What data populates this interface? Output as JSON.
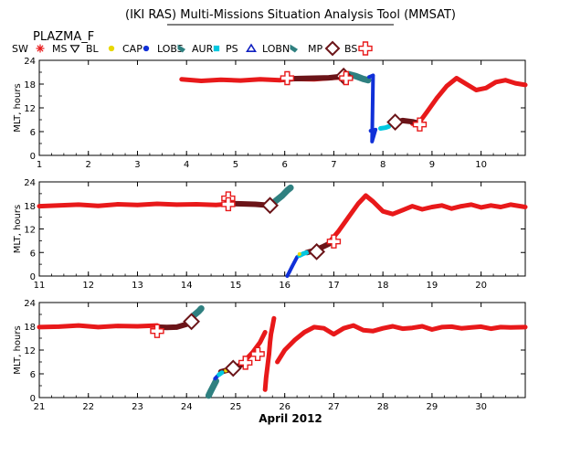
{
  "header": {
    "title": "(IKI RAS) Multi-Missions Situation Analysis Tool (MMSAT)",
    "subtitle": "PLAZMA_F"
  },
  "legend": [
    {
      "label": "SW",
      "marker": "none",
      "color": "#000000"
    },
    {
      "label": "MS",
      "marker": "asterisk",
      "color": "#e8191a"
    },
    {
      "label": "BL",
      "marker": "triangle-down",
      "color": "#000000"
    },
    {
      "label": "CAP",
      "marker": "dot",
      "color": "#e8d800"
    },
    {
      "label": "LOBS",
      "marker": "dot",
      "color": "#1030d8"
    },
    {
      "label": "AUR",
      "marker": "flag",
      "color": "#2f8080"
    },
    {
      "label": "PS",
      "marker": "square",
      "color": "#00c8e0"
    },
    {
      "label": "LOBN",
      "marker": "triangle-up",
      "color": "#1020c0"
    },
    {
      "label": "MP",
      "marker": "flag",
      "color": "#2f8080"
    },
    {
      "label": "BS",
      "marker": "diamond",
      "color": "#6b1418"
    },
    {
      "label": "",
      "marker": "cross",
      "color": "#e8191a"
    }
  ],
  "chart_data": [
    {
      "type": "scatter",
      "ylabel": "MLT, hours",
      "xlim": [
        1,
        10.9
      ],
      "ylim": [
        0,
        24
      ],
      "xticks": [
        1,
        2,
        3,
        4,
        5,
        6,
        7,
        8,
        9,
        10
      ],
      "yticks": [
        0,
        6,
        12,
        18,
        24
      ],
      "series": [
        {
          "name": "MS",
          "color": "#e8191a",
          "x": [
            3.9,
            4.3,
            4.7,
            5.1,
            5.5,
            5.9,
            6.2,
            6.6,
            7.0,
            7.3
          ],
          "y": [
            19.2,
            18.8,
            19.1,
            18.9,
            19.2,
            19.0,
            19.3,
            19.2,
            19.6,
            19.8
          ]
        },
        {
          "name": "MS",
          "color": "#e8191a",
          "x": [
            8.6,
            8.75,
            8.9,
            9.1,
            9.3,
            9.5,
            9.7,
            9.9,
            10.1,
            10.3,
            10.5,
            10.7,
            10.9
          ],
          "y": [
            8.0,
            8.5,
            11.0,
            14.5,
            17.5,
            19.5,
            18.0,
            16.5,
            17.0,
            18.5,
            19.0,
            18.2,
            17.8
          ]
        },
        {
          "name": "BS",
          "color": "#6b1418",
          "x": [
            6.0,
            6.3,
            6.6,
            6.9,
            7.2
          ],
          "y": [
            19.3,
            19.4,
            19.5,
            19.6,
            20.0
          ]
        },
        {
          "name": "BS",
          "color": "#6b1418",
          "x": [
            8.2,
            8.4,
            8.6,
            8.75
          ],
          "y": [
            8.2,
            8.8,
            8.5,
            8.0
          ]
        },
        {
          "name": "AUR",
          "color": "#2f8080",
          "x": [
            7.3,
            7.45,
            7.6,
            7.7
          ],
          "y": [
            20.5,
            20.0,
            19.3,
            19.0
          ]
        },
        {
          "name": "LOBS",
          "color": "#1030d8",
          "x": [
            7.72,
            7.8,
            7.78,
            7.85,
            7.75
          ],
          "y": [
            19.8,
            20.2,
            3.5,
            6.5,
            6.2
          ]
        },
        {
          "name": "PS",
          "color": "#00c8e0",
          "x": [
            7.95,
            8.05,
            8.12
          ],
          "y": [
            6.8,
            7.0,
            7.3
          ]
        },
        {
          "name": "CAP",
          "color": "#e8d800",
          "x": [
            7.22,
            8.3
          ],
          "y": [
            19.8,
            8.5
          ]
        }
      ],
      "bs_markers": [
        [
          7.2,
          20.0
        ],
        [
          8.25,
          8.4
        ]
      ],
      "cross_markers": [
        [
          6.05,
          19.5
        ],
        [
          7.25,
          19.5
        ],
        [
          8.75,
          7.8
        ]
      ]
    },
    {
      "type": "scatter",
      "ylabel": "MLT, hours",
      "xlim": [
        11,
        20.9
      ],
      "ylim": [
        0,
        24
      ],
      "xticks": [
        11,
        12,
        13,
        14,
        15,
        16,
        17,
        18,
        19,
        20
      ],
      "yticks": [
        0,
        6,
        12,
        18,
        24
      ],
      "series": [
        {
          "name": "MS",
          "color": "#e8191a",
          "x": [
            11.0,
            11.4,
            11.8,
            12.2,
            12.6,
            13.0,
            13.4,
            13.8,
            14.2,
            14.6,
            15.0,
            15.4
          ],
          "y": [
            17.8,
            18.0,
            18.2,
            17.9,
            18.3,
            18.1,
            18.4,
            18.2,
            18.3,
            18.1,
            18.5,
            18.3
          ]
        },
        {
          "name": "MS",
          "color": "#e8191a",
          "x": [
            16.9,
            17.1,
            17.3,
            17.5,
            17.65,
            17.8,
            18.0,
            18.2,
            18.4,
            18.6,
            18.8,
            19.0,
            19.2,
            19.4,
            19.6,
            19.8,
            20.0,
            20.2,
            20.4,
            20.6,
            20.9
          ],
          "y": [
            8.5,
            11.5,
            15.0,
            18.5,
            20.5,
            19.0,
            16.5,
            15.8,
            16.8,
            17.8,
            17.0,
            17.6,
            18.0,
            17.2,
            17.8,
            18.2,
            17.5,
            18.0,
            17.6,
            18.2,
            17.6
          ]
        },
        {
          "name": "BS",
          "color": "#6b1418",
          "x": [
            14.8,
            15.1,
            15.4,
            15.7
          ],
          "y": [
            18.5,
            18.4,
            18.3,
            18.0
          ]
        },
        {
          "name": "BS",
          "color": "#6b1418",
          "x": [
            16.45,
            16.6,
            16.75,
            16.9
          ],
          "y": [
            6.0,
            6.5,
            7.3,
            8.2
          ]
        },
        {
          "name": "AUR",
          "color": "#2f8080",
          "x": [
            15.8,
            15.95,
            16.05,
            16.12
          ],
          "y": [
            19.0,
            20.5,
            21.8,
            22.5
          ]
        },
        {
          "name": "LOBS",
          "color": "#1030d8",
          "x": [
            16.05,
            16.1,
            16.15,
            16.2,
            16.25
          ],
          "y": [
            0.0,
            1.2,
            2.4,
            3.6,
            4.8
          ]
        },
        {
          "name": "PS",
          "color": "#00c8e0",
          "x": [
            16.3,
            16.38,
            16.45
          ],
          "y": [
            5.2,
            5.7,
            6.0
          ]
        },
        {
          "name": "CAP",
          "color": "#e8d800",
          "x": [
            15.75,
            16.3
          ],
          "y": [
            18.2,
            5.6
          ]
        }
      ],
      "bs_markers": [
        [
          15.7,
          18.0
        ],
        [
          16.65,
          6.2
        ]
      ],
      "cross_markers": [
        [
          14.85,
          19.8
        ],
        [
          14.85,
          18.3
        ],
        [
          17.0,
          8.8
        ]
      ]
    },
    {
      "type": "scatter",
      "ylabel": "MLT, hours",
      "xlabel": "April 2012",
      "xlim": [
        21,
        30.9
      ],
      "ylim": [
        0,
        24
      ],
      "xticks": [
        21,
        22,
        23,
        24,
        25,
        26,
        27,
        28,
        29,
        30
      ],
      "yticks": [
        0,
        6,
        12,
        18,
        24
      ],
      "series": [
        {
          "name": "MS",
          "color": "#e8191a",
          "x": [
            21.0,
            21.4,
            21.8,
            22.2,
            22.6,
            23.0,
            23.4
          ],
          "y": [
            17.8,
            17.9,
            18.2,
            17.8,
            18.1,
            18.0,
            18.2
          ]
        },
        {
          "name": "MS",
          "color": "#e8191a",
          "x": [
            25.05,
            25.2,
            25.35,
            25.5,
            25.6
          ],
          "y": [
            7.5,
            9.5,
            11.5,
            14.0,
            16.5
          ]
        },
        {
          "name": "MS",
          "color": "#e8191a",
          "x": [
            25.6,
            25.62,
            25.65,
            25.68,
            25.7,
            25.72,
            25.75,
            25.78
          ],
          "y": [
            2.0,
            5.0,
            8.0,
            11.0,
            14.0,
            16.0,
            18.0,
            20.0
          ]
        },
        {
          "name": "MS",
          "color": "#e8191a",
          "x": [
            25.85,
            26.0,
            26.2,
            26.4,
            26.6,
            26.8,
            27.0,
            27.2,
            27.4,
            27.6,
            27.8,
            28.0,
            28.2,
            28.4,
            28.6,
            28.8,
            29.0,
            29.2,
            29.4,
            29.6,
            29.8,
            30.0,
            30.2,
            30.4,
            30.6,
            30.9
          ],
          "y": [
            9.0,
            12.0,
            14.5,
            16.5,
            17.8,
            17.5,
            16.0,
            17.5,
            18.2,
            17.0,
            16.8,
            17.5,
            18.0,
            17.4,
            17.6,
            18.0,
            17.2,
            17.8,
            17.9,
            17.5,
            17.7,
            17.9,
            17.4,
            17.8,
            17.7,
            17.8
          ]
        },
        {
          "name": "BS",
          "color": "#6b1418",
          "x": [
            23.4,
            23.6,
            23.8,
            24.0
          ],
          "y": [
            17.8,
            17.7,
            17.8,
            18.5
          ]
        },
        {
          "name": "BS",
          "color": "#6b1418",
          "x": [
            24.7,
            24.85,
            25.0,
            25.15
          ],
          "y": [
            6.5,
            7.0,
            7.6,
            8.5
          ]
        },
        {
          "name": "AUR",
          "color": "#2f8080",
          "x": [
            24.05,
            24.15,
            24.25,
            24.3
          ],
          "y": [
            19.5,
            20.8,
            21.8,
            22.5
          ]
        },
        {
          "name": "AUR",
          "color": "#2f8080",
          "x": [
            24.45,
            24.5,
            24.55,
            24.6
          ],
          "y": [
            0.5,
            1.8,
            3.0,
            4.2
          ]
        },
        {
          "name": "LOBS",
          "color": "#1030d8",
          "x": [
            24.58,
            24.62,
            24.66
          ],
          "y": [
            4.8,
            5.3,
            5.8
          ]
        },
        {
          "name": "PS",
          "color": "#00c8e0",
          "x": [
            24.66,
            24.72
          ],
          "y": [
            5.8,
            6.3
          ]
        },
        {
          "name": "CAP",
          "color": "#e8d800",
          "x": [
            24.02,
            24.8
          ],
          "y": [
            19.2,
            6.8
          ]
        }
      ],
      "bs_markers": [
        [
          24.1,
          19.2
        ],
        [
          24.95,
          7.4
        ]
      ],
      "cross_markers": [
        [
          23.4,
          16.8
        ],
        [
          25.2,
          8.8
        ],
        [
          25.45,
          11.0
        ]
      ]
    }
  ]
}
